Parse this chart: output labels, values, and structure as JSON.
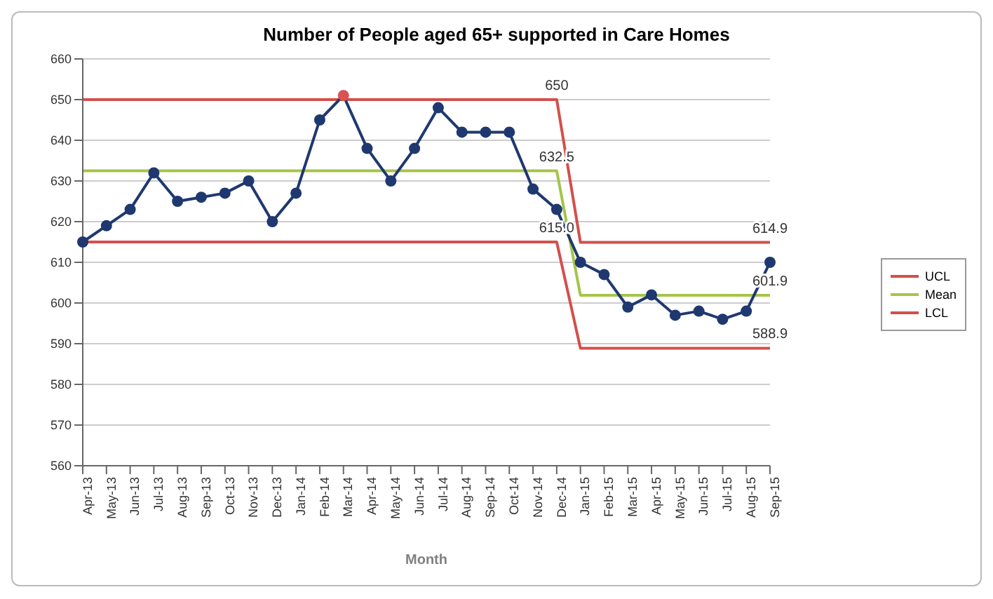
{
  "chart_data": {
    "type": "line",
    "title": "Number of People aged 65+ supported in Care Homes",
    "xlabel": "Month",
    "categories": [
      "Apr-13",
      "May-13",
      "Jun-13",
      "Jul-13",
      "Aug-13",
      "Sep-13",
      "Oct-13",
      "Nov-13",
      "Dec-13",
      "Jan-14",
      "Feb-14",
      "Mar-14",
      "Apr-14",
      "May-14",
      "Jun-14",
      "Jul-14",
      "Aug-14",
      "Sep-14",
      "Oct-14",
      "Nov-14",
      "Dec-14",
      "Jan-15",
      "Feb-15",
      "Mar-15",
      "Apr-15",
      "May-15",
      "Jun-15",
      "Jul-15",
      "Aug-15",
      "Sep-15"
    ],
    "series": [
      {
        "color": "#1f3870",
        "marker": "circle",
        "colors": [
          "#1f3870",
          "#1f3870",
          "#1f3870",
          "#1f3870",
          "#1f3870",
          "#1f3870",
          "#1f3870",
          "#1f3870",
          "#1f3870",
          "#1f3870",
          "#1f3870",
          "#d9534f",
          "#1f3870",
          "#1f3870",
          "#1f3870",
          "#1f3870",
          "#1f3870",
          "#1f3870",
          "#1f3870",
          "#1f3870",
          "#1f3870",
          "#1f3870",
          "#1f3870",
          "#1f3870",
          "#1f3870",
          "#1f3870",
          "#1f3870",
          "#1f3870",
          "#1f3870",
          "#1f3870"
        ],
        "values": [
          615,
          619,
          623,
          632,
          625,
          626,
          627,
          630,
          620,
          627,
          645,
          651,
          638,
          630,
          638,
          648,
          642,
          642,
          642,
          628,
          623,
          610,
          607,
          599,
          602,
          597,
          598,
          596,
          598,
          610
        ]
      },
      {
        "name": "UCL",
        "color": "#d2504c",
        "marker": "none",
        "values": [
          650,
          650,
          650,
          650,
          650,
          650,
          650,
          650,
          650,
          650,
          650,
          650,
          650,
          650,
          650,
          650,
          650,
          650,
          650,
          650,
          650,
          614.9,
          614.9,
          614.9,
          614.9,
          614.9,
          614.9,
          614.9,
          614.9,
          614.9
        ]
      },
      {
        "name": "Mean",
        "color": "#a5c44a",
        "marker": "none",
        "values": [
          632.5,
          632.5,
          632.5,
          632.5,
          632.5,
          632.5,
          632.5,
          632.5,
          632.5,
          632.5,
          632.5,
          632.5,
          632.5,
          632.5,
          632.5,
          632.5,
          632.5,
          632.5,
          632.5,
          632.5,
          632.5,
          601.9,
          601.9,
          601.9,
          601.9,
          601.9,
          601.9,
          601.9,
          601.9,
          601.9
        ]
      },
      {
        "name": "LCL",
        "color": "#d2504c",
        "marker": "none",
        "values": [
          615,
          615,
          615,
          615,
          615,
          615,
          615,
          615,
          615,
          615,
          615,
          615,
          615,
          615,
          615,
          615,
          615,
          615,
          615,
          615,
          615,
          588.9,
          588.9,
          588.9,
          588.9,
          588.9,
          588.9,
          588.9,
          588.9,
          588.9
        ]
      }
    ],
    "annotations": [
      {
        "text": "650",
        "x": "Dec-14",
        "y": 650
      },
      {
        "text": "632.5",
        "x": "Dec-14",
        "y": 632.5
      },
      {
        "text": "615.0",
        "x": "Dec-14",
        "y": 615
      },
      {
        "text": "614.9",
        "x": "Sep-15",
        "y": 614.9
      },
      {
        "text": "601.9",
        "x": "Sep-15",
        "y": 601.9
      },
      {
        "text": "588.9",
        "x": "Sep-15",
        "y": 588.9
      }
    ],
    "ylim": [
      560,
      660
    ],
    "yticks": [
      560,
      570,
      580,
      590,
      600,
      610,
      620,
      630,
      640,
      650,
      660
    ],
    "grid": "y",
    "legend": "right",
    "line_style": "solid"
  }
}
